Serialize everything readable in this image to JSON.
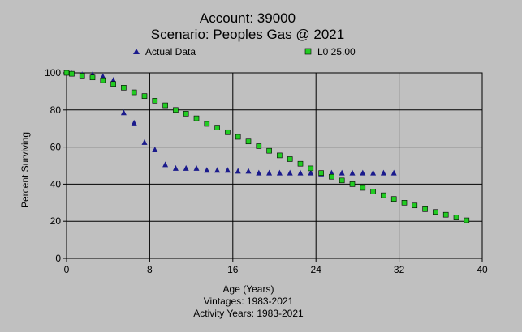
{
  "chart_data": {
    "type": "scatter",
    "title": "Account: 39000",
    "subtitle": "Scenario: Peoples Gas @ 2021",
    "xlabel": "Age (Years)",
    "ylabel": "Percent Surviving",
    "notes": [
      "Vintages: 1983-2021",
      "Activity Years: 1983-2021"
    ],
    "xlim": [
      0,
      40
    ],
    "ylim": [
      0,
      100
    ],
    "xticks": [
      "0",
      "8",
      "16",
      "24",
      "32",
      "40"
    ],
    "yticks": [
      "0",
      "20",
      "40",
      "60",
      "80",
      "100"
    ],
    "grid": true,
    "legend_position": "top",
    "series": [
      {
        "name": "Actual Data",
        "marker": "triangle",
        "color": "#1a1a8c",
        "x": [
          0,
          0.5,
          1.5,
          2.5,
          3.5,
          4.5,
          5.5,
          6.5,
          7.5,
          8.5,
          9.5,
          10.5,
          11.5,
          12.5,
          13.5,
          14.5,
          15.5,
          16.5,
          17.5,
          18.5,
          19.5,
          20.5,
          21.5,
          22.5,
          23.5,
          24.5,
          25.5,
          26.5,
          27.5,
          28.5,
          29.5,
          30.5,
          31.5
        ],
        "y": [
          100,
          99.5,
          99,
          99,
          98,
          96,
          78.5,
          73,
          62.5,
          58.5,
          50.5,
          48.5,
          48.5,
          48.5,
          47.5,
          47.5,
          47.5,
          47,
          47,
          46,
          46,
          46,
          46,
          46,
          46,
          45.5,
          46,
          46,
          46,
          46,
          46,
          46,
          46
        ]
      },
      {
        "name": "L0 25.00",
        "marker": "square",
        "color": "#22cc22",
        "x": [
          0,
          0.5,
          1.5,
          2.5,
          3.5,
          4.5,
          5.5,
          6.5,
          7.5,
          8.5,
          9.5,
          10.5,
          11.5,
          12.5,
          13.5,
          14.5,
          15.5,
          16.5,
          17.5,
          18.5,
          19.5,
          20.5,
          21.5,
          22.5,
          23.5,
          24.5,
          25.5,
          26.5,
          27.5,
          28.5,
          29.5,
          30.5,
          31.5,
          32.5,
          33.5,
          34.5,
          35.5,
          36.5,
          37.5,
          38.5
        ],
        "y": [
          100,
          99.5,
          98.5,
          97.5,
          96,
          94,
          92,
          89.5,
          87.5,
          85,
          82.5,
          80,
          78,
          75.5,
          72.5,
          70.5,
          68,
          65.5,
          63,
          60.5,
          58,
          55.5,
          53.5,
          51,
          48.5,
          46,
          44,
          42,
          40,
          38,
          36,
          34,
          32,
          30,
          28.5,
          26.5,
          25,
          23.5,
          22,
          20.5
        ]
      }
    ]
  }
}
